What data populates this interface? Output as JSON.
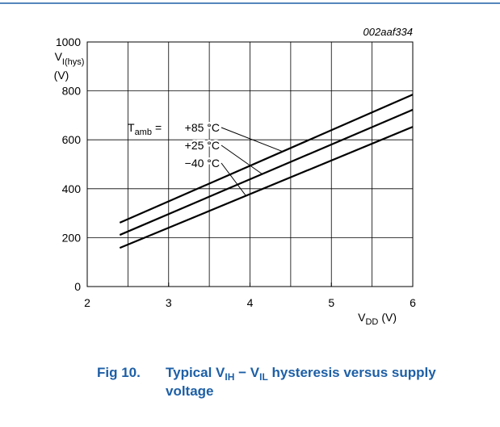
{
  "chart_data": {
    "type": "line",
    "code": "002aaf334",
    "y_label": {
      "main": "V",
      "sub": "I(hys)",
      "unit": "(V)"
    },
    "x_label": {
      "main": "V",
      "sub": "DD",
      "unit": "(V)"
    },
    "legend_title": {
      "main": "T",
      "sub": "amb",
      "eq": "="
    },
    "x": [
      2.4,
      6
    ],
    "series": [
      {
        "name": "+85 °C",
        "color": "#000000",
        "values": [
          261,
          785
        ]
      },
      {
        "name": "+25 °C",
        "color": "#000000",
        "values": [
          211,
          723
        ]
      },
      {
        "name": "−40 °C",
        "color": "#000000",
        "values": [
          158,
          653
        ]
      }
    ],
    "xlim": [
      2,
      6
    ],
    "xticks": [
      2,
      3,
      4,
      5,
      6
    ],
    "xgrid": [
      2.5,
      3,
      3.5,
      4,
      4.5,
      5,
      5.5
    ],
    "ylim": [
      0,
      1000
    ],
    "yticks": [
      0,
      200,
      400,
      600,
      800,
      1000
    ],
    "grid": true,
    "caption": {
      "number": "Fig 10.",
      "parts": [
        "Typical V",
        "IH",
        " − V",
        "IL",
        " hysteresis versus supply"
      ],
      "line2": "voltage"
    }
  }
}
